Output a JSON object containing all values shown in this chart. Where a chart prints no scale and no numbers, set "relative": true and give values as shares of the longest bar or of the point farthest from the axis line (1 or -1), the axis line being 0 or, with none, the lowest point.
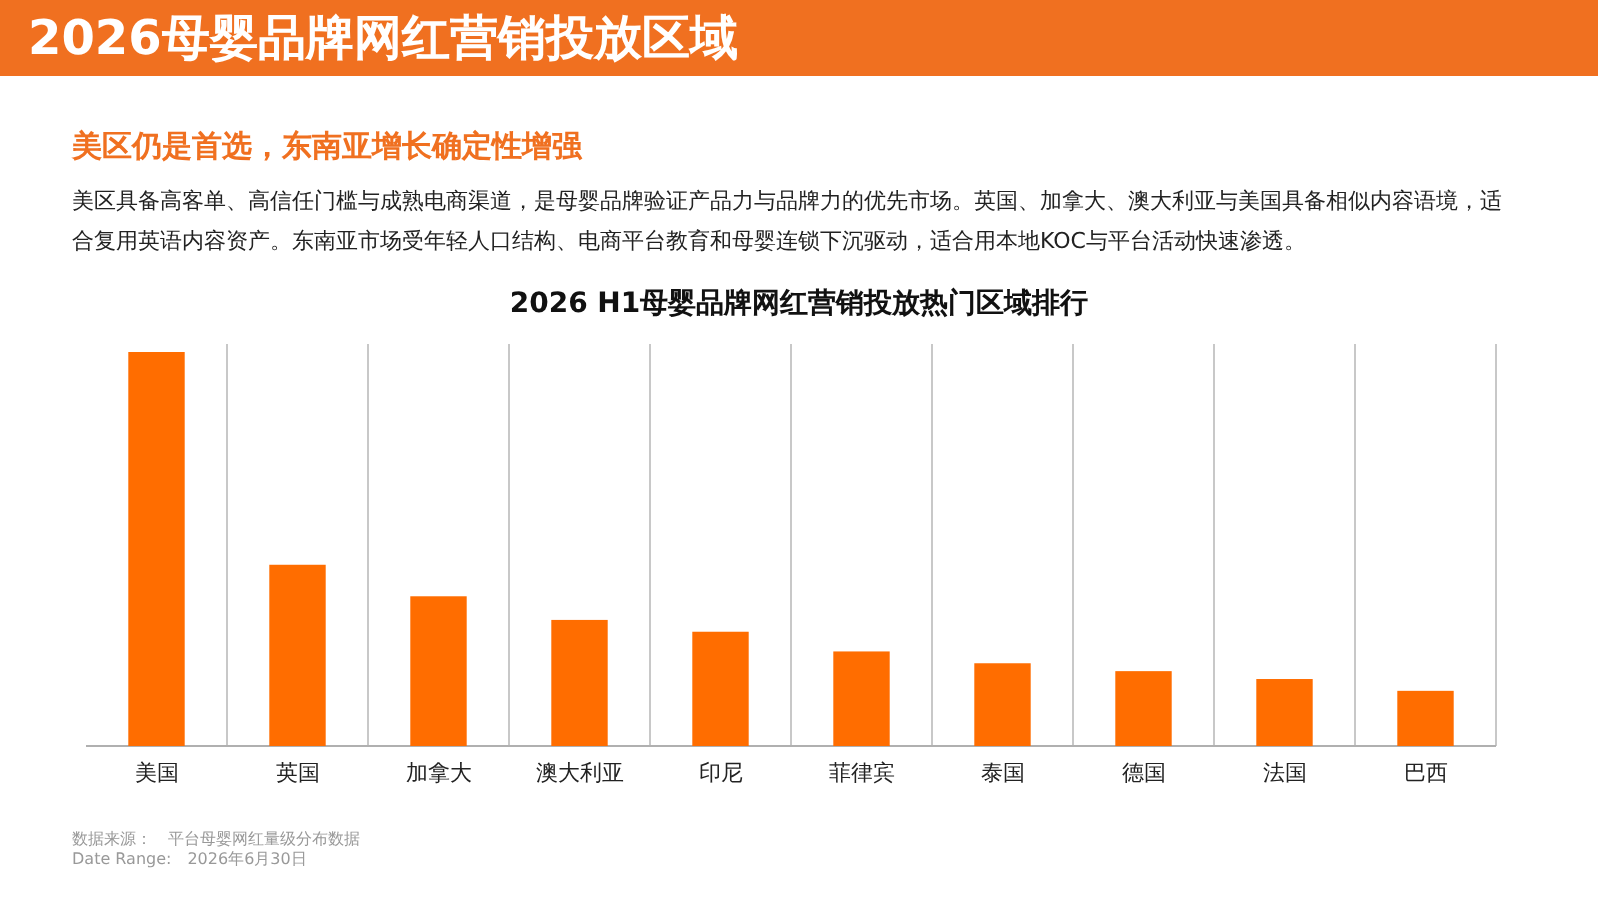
{
  "chart_data": {
    "type": "bar",
    "relative": true,
    "title": "2026母婴品牌网红营销投放区域",
    "subtitle": "美区仍是首选，东南亚增长确定性增强",
    "annotations": [
      "美区具备高客单、高信任门槛与成熟电商渠道，是母婴品牌验证产品力与品牌力的优先市场。英国、加拿大、澳大利亚与美国具备相似内容语境，适合复用英语内容资产。东南亚市场受年轻人口结构、电商平台教育和母婴连锁下沉驱动，适合用本地KOC与平台活动快速渗透。",
      "2026 H1母婴品牌网红营销投放热门区域排行",
      "数据来源：　平台母婴网红量级分布数据",
      "Date Range:　2026年6月30日"
    ],
    "categories": [
      "美国",
      "英国",
      "加拿大",
      "澳大利亚",
      "印尼",
      "菲律宾",
      "泰国",
      "德国",
      "法国",
      "巴西"
    ],
    "values": [
      1,
      0.46,
      0.38,
      0.32,
      0.29,
      0.24,
      0.21,
      0.19,
      0.17,
      0.14
    ],
    "color": "#ff6d00",
    "grid": "x"
  }
}
